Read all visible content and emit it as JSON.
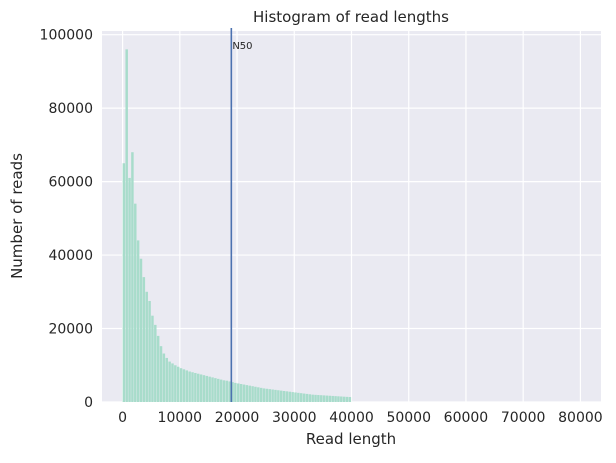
{
  "chart_data": {
    "type": "bar",
    "title": "Histogram of read lengths",
    "xlabel": "Read length",
    "ylabel": "Number of reads",
    "xlim": [
      -3600,
      83600
    ],
    "ylim": [
      0,
      101000
    ],
    "xticks": [
      0,
      10000,
      20000,
      30000,
      40000,
      50000,
      60000,
      70000,
      80000
    ],
    "xtick_labels": [
      "0",
      "10000",
      "20000",
      "30000",
      "40000",
      "50000",
      "60000",
      "70000",
      "80000"
    ],
    "yticks": [
      0,
      20000,
      40000,
      60000,
      80000,
      100000
    ],
    "ytick_labels": [
      "0",
      "20000",
      "40000",
      "60000",
      "80000",
      "100000"
    ],
    "bin_width": 500,
    "bin_start": 0,
    "values": [
      65000,
      96000,
      61000,
      68000,
      54000,
      44000,
      39000,
      34000,
      30000,
      27500,
      23500,
      21000,
      18000,
      15200,
      13200,
      12000,
      11000,
      10500,
      10000,
      9600,
      9200,
      8900,
      8600,
      8300,
      8100,
      7900,
      7700,
      7500,
      7300,
      7100,
      6900,
      6700,
      6500,
      6300,
      6100,
      5900,
      5800,
      5600,
      5400,
      5200,
      5050,
      4900,
      4750,
      4600,
      4450,
      4300,
      4150,
      4000,
      3850,
      3700,
      3600,
      3500,
      3400,
      3300,
      3200,
      3100,
      3000,
      2900,
      2800,
      2700,
      2600,
      2500,
      2400,
      2300,
      2200,
      2100,
      2000,
      1950,
      1900,
      1850,
      1800,
      1750,
      1700,
      1650,
      1600,
      1550,
      1500,
      1450,
      1400,
      1350
    ],
    "n50": {
      "x": 19000,
      "label": "N50"
    },
    "grid": true,
    "colors": {
      "bar": "#a8dccb",
      "n50_line": "#4c72b0",
      "plot_bg": "#eaeaf2",
      "grid": "#ffffff"
    }
  }
}
